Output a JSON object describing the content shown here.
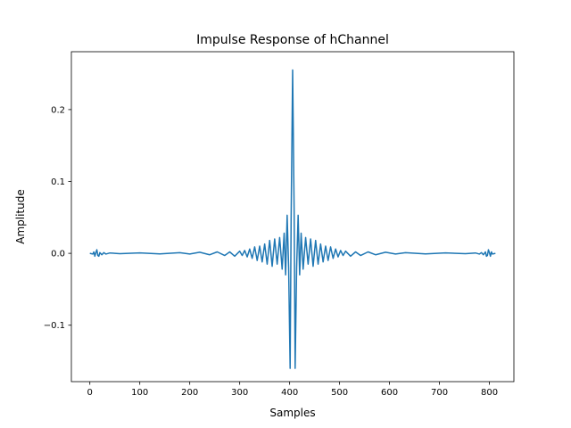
{
  "chart_data": {
    "type": "line",
    "title": "Impulse Response of hChannel",
    "xlabel": "Samples",
    "ylabel": "Amplitude",
    "xlim": [
      -37,
      849
    ],
    "ylim": [
      -0.1785,
      0.2805
    ],
    "grid": false,
    "xticks": [
      0,
      100,
      200,
      300,
      400,
      500,
      600,
      700,
      800
    ],
    "yticks": [
      -0.1,
      0.0,
      0.1,
      0.2
    ],
    "ytick_labels": [
      "−0.1",
      "0.0",
      "0.1",
      "0.2"
    ],
    "series": [
      {
        "color": "#1f77b4",
        "points": [
          [
            0,
            0.0
          ],
          [
            6,
            -0.001
          ],
          [
            8,
            0.002
          ],
          [
            10,
            -0.004
          ],
          [
            12,
            0.001
          ],
          [
            14,
            0.005
          ],
          [
            16,
            -0.003
          ],
          [
            18,
            -0.004
          ],
          [
            20,
            0.001
          ],
          [
            24,
            -0.002
          ],
          [
            28,
            0.001
          ],
          [
            32,
            -0.001
          ],
          [
            40,
            0.0005
          ],
          [
            60,
            -0.0005
          ],
          [
            100,
            0.0006
          ],
          [
            140,
            -0.0008
          ],
          [
            180,
            0.0009
          ],
          [
            200,
            -0.001
          ],
          [
            220,
            0.0015
          ],
          [
            240,
            -0.002
          ],
          [
            255,
            0.002
          ],
          [
            270,
            -0.003
          ],
          [
            280,
            0.002
          ],
          [
            290,
            -0.004
          ],
          [
            300,
            0.003
          ],
          [
            305,
            -0.003
          ],
          [
            310,
            0.004
          ],
          [
            315,
            -0.005
          ],
          [
            320,
            0.006
          ],
          [
            325,
            -0.007
          ],
          [
            330,
            0.009
          ],
          [
            335,
            -0.01
          ],
          [
            340,
            0.01
          ],
          [
            345,
            -0.012
          ],
          [
            350,
            0.013
          ],
          [
            355,
            -0.015
          ],
          [
            360,
            0.018
          ],
          [
            365,
            -0.018
          ],
          [
            370,
            0.02
          ],
          [
            375,
            -0.015
          ],
          [
            380,
            0.022
          ],
          [
            385,
            -0.022
          ],
          [
            389,
            0.028
          ],
          [
            392,
            -0.03
          ],
          [
            395,
            0.053
          ],
          [
            398,
            -0.02
          ],
          [
            401,
            -0.16
          ],
          [
            403,
            0.05
          ],
          [
            406,
            0.255
          ],
          [
            409,
            0.06
          ],
          [
            411,
            -0.16
          ],
          [
            414,
            -0.02
          ],
          [
            417,
            0.053
          ],
          [
            420,
            -0.03
          ],
          [
            423,
            0.028
          ],
          [
            427,
            -0.022
          ],
          [
            432,
            0.022
          ],
          [
            437,
            -0.015
          ],
          [
            442,
            0.02
          ],
          [
            447,
            -0.018
          ],
          [
            452,
            0.018
          ],
          [
            457,
            -0.015
          ],
          [
            462,
            0.013
          ],
          [
            467,
            -0.012
          ],
          [
            472,
            0.01
          ],
          [
            477,
            -0.01
          ],
          [
            482,
            0.009
          ],
          [
            487,
            -0.007
          ],
          [
            492,
            0.006
          ],
          [
            497,
            -0.005
          ],
          [
            502,
            0.004
          ],
          [
            507,
            -0.003
          ],
          [
            512,
            0.003
          ],
          [
            522,
            -0.004
          ],
          [
            532,
            0.002
          ],
          [
            542,
            -0.003
          ],
          [
            557,
            0.002
          ],
          [
            572,
            -0.002
          ],
          [
            592,
            0.0015
          ],
          [
            612,
            -0.001
          ],
          [
            632,
            0.0009
          ],
          [
            672,
            -0.0008
          ],
          [
            712,
            0.0006
          ],
          [
            752,
            -0.0005
          ],
          [
            772,
            0.0005
          ],
          [
            780,
            -0.001
          ],
          [
            784,
            0.001
          ],
          [
            788,
            -0.002
          ],
          [
            792,
            0.002
          ],
          [
            794,
            -0.004
          ],
          [
            796,
            -0.003
          ],
          [
            798,
            0.005
          ],
          [
            800,
            0.001
          ],
          [
            802,
            -0.004
          ],
          [
            804,
            0.002
          ],
          [
            806,
            -0.001
          ],
          [
            812,
            0.0
          ]
        ]
      }
    ]
  }
}
